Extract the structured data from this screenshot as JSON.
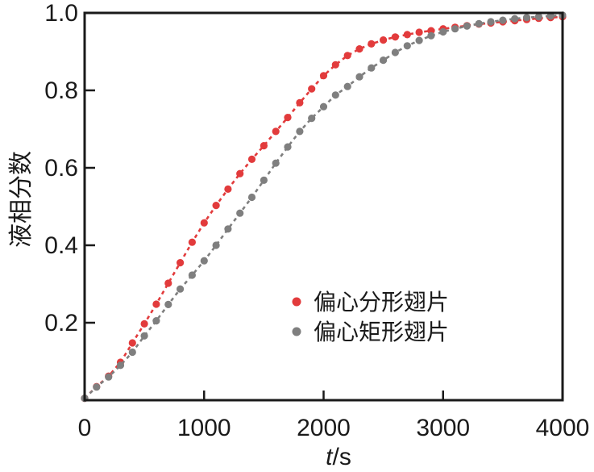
{
  "figure": {
    "background": "#ffffff",
    "frame_color": "#1a1a1a",
    "text_color": "#1a1a1a"
  },
  "axes": {
    "x": {
      "label_var": "t",
      "label_rest": "/s",
      "tick_labels": [
        "0",
        "1000",
        "2000",
        "3000",
        "4000"
      ],
      "ticks": [
        0,
        1000,
        2000,
        3000,
        4000
      ]
    },
    "y": {
      "label": "液相分数",
      "tick_labels": [
        "0.2",
        "0.4",
        "0.6",
        "0.8",
        "1.0"
      ],
      "ticks": [
        0.2,
        0.4,
        0.6,
        0.8,
        1.0
      ]
    }
  },
  "legend": {
    "items": [
      {
        "label": "偏心分形翅片",
        "color": "#e23b3c",
        "marker": "circle-icon"
      },
      {
        "label": "偏心矩形翅片",
        "color": "#7f7f7f",
        "marker": "circle-icon"
      }
    ]
  },
  "chart_data": {
    "type": "line",
    "title": "",
    "xlabel": "t/s",
    "ylabel": "液相分数",
    "xlim": [
      0,
      4000
    ],
    "ylim": [
      0,
      1
    ],
    "grid": false,
    "legend_position": "inside-right-middle",
    "marker": "circle",
    "line_style": "dashed",
    "x": [
      0,
      100,
      200,
      300,
      400,
      500,
      600,
      700,
      800,
      900,
      1000,
      1100,
      1200,
      1300,
      1400,
      1500,
      1600,
      1700,
      1800,
      1900,
      2000,
      2100,
      2200,
      2300,
      2400,
      2500,
      2600,
      2700,
      2800,
      2900,
      3000,
      3100,
      3200,
      3300,
      3400,
      3500,
      3600,
      3700,
      3800,
      3900,
      4000
    ],
    "series": [
      {
        "name": "偏心分形翅片",
        "color": "#e23b3c",
        "values": [
          0.005,
          0.035,
          0.062,
          0.098,
          0.148,
          0.197,
          0.248,
          0.302,
          0.355,
          0.408,
          0.458,
          0.503,
          0.545,
          0.585,
          0.622,
          0.657,
          0.694,
          0.73,
          0.768,
          0.804,
          0.838,
          0.866,
          0.89,
          0.907,
          0.92,
          0.93,
          0.938,
          0.944,
          0.95,
          0.954,
          0.959,
          0.963,
          0.967,
          0.971,
          0.974,
          0.977,
          0.98,
          0.983,
          0.986,
          0.988,
          0.99
        ]
      },
      {
        "name": "偏心矩形翅片",
        "color": "#7f7f7f",
        "values": [
          0.005,
          0.034,
          0.06,
          0.09,
          0.124,
          0.166,
          0.205,
          0.247,
          0.287,
          0.323,
          0.36,
          0.4,
          0.442,
          0.483,
          0.524,
          0.568,
          0.612,
          0.654,
          0.694,
          0.728,
          0.758,
          0.788,
          0.81,
          0.835,
          0.858,
          0.878,
          0.898,
          0.915,
          0.929,
          0.941,
          0.951,
          0.959,
          0.966,
          0.972,
          0.977,
          0.981,
          0.985,
          0.988,
          0.99,
          0.992,
          0.994
        ]
      }
    ]
  }
}
